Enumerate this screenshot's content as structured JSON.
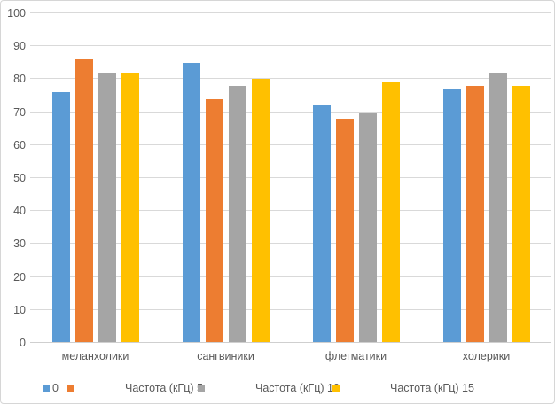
{
  "chart_data": {
    "type": "bar",
    "title": "",
    "xlabel": "",
    "ylabel": "",
    "categories": [
      "меланхолики",
      "сангвиники",
      "флегматики",
      "холерики"
    ],
    "series": [
      {
        "name": "0",
        "color": "#5B9BD5",
        "values": [
          76,
          85,
          72,
          77
        ]
      },
      {
        "name": "Частота (кГц) 5",
        "color": "#ED7D31",
        "values": [
          86,
          74,
          68,
          78
        ]
      },
      {
        "name": "Частота (кГц) 10",
        "color": "#A5A5A5",
        "values": [
          82,
          78,
          70,
          82
        ]
      },
      {
        "name": "Частота (кГц) 15",
        "color": "#FFC000",
        "values": [
          82,
          80,
          79,
          78
        ]
      }
    ],
    "ylim": [
      0,
      100
    ],
    "ytick_step": 10,
    "yticks": [
      0,
      10,
      20,
      30,
      40,
      50,
      60,
      70,
      80,
      90,
      100
    ],
    "grid": true,
    "legend_position": "bottom"
  },
  "colors": {
    "gridline": "#d9d9d9",
    "axis_text": "#595959",
    "chart_border": "#d6d6d6"
  }
}
